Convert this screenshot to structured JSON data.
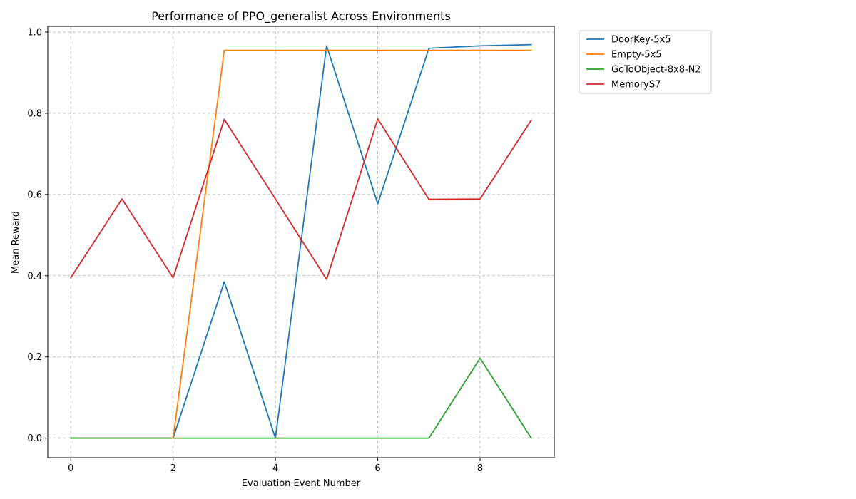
{
  "chart_data": {
    "type": "line",
    "title": "Performance of PPO_generalist Across Environments",
    "xlabel": "Evaluation Event Number",
    "ylabel": "Mean Reward",
    "x": [
      0,
      1,
      2,
      3,
      4,
      5,
      6,
      7,
      8,
      9
    ],
    "xlim": [
      -0.45,
      9.45
    ],
    "ylim": [
      -0.048,
      1.014
    ],
    "xticks": [
      "0",
      "2",
      "4",
      "6",
      "8"
    ],
    "yticks": [
      "0.0",
      "0.2",
      "0.4",
      "0.6",
      "0.8",
      "1.0"
    ],
    "grid": true,
    "legend_position": "outside-top-right",
    "series": [
      {
        "name": "DoorKey-5x5",
        "color": "#1f77b4",
        "values": [
          0.0,
          0.0,
          0.0,
          0.385,
          0.0,
          0.966,
          0.577,
          0.96,
          0.966,
          0.969
        ]
      },
      {
        "name": "Empty-5x5",
        "color": "#ff7f0e",
        "values": [
          0.0,
          0.0,
          0.0,
          0.955,
          0.955,
          0.955,
          0.955,
          0.955,
          0.955,
          0.955
        ]
      },
      {
        "name": "GoToObject-8x8-N2",
        "color": "#2ca02c",
        "values": [
          0.0,
          0.0,
          0.0,
          0.0,
          0.0,
          0.0,
          0.0,
          0.0,
          0.197,
          0.0
        ]
      },
      {
        "name": "MemoryS7",
        "color": "#d62728",
        "values": [
          0.395,
          0.589,
          0.395,
          0.785,
          0.589,
          0.391,
          0.786,
          0.588,
          0.589,
          0.783
        ]
      }
    ]
  }
}
